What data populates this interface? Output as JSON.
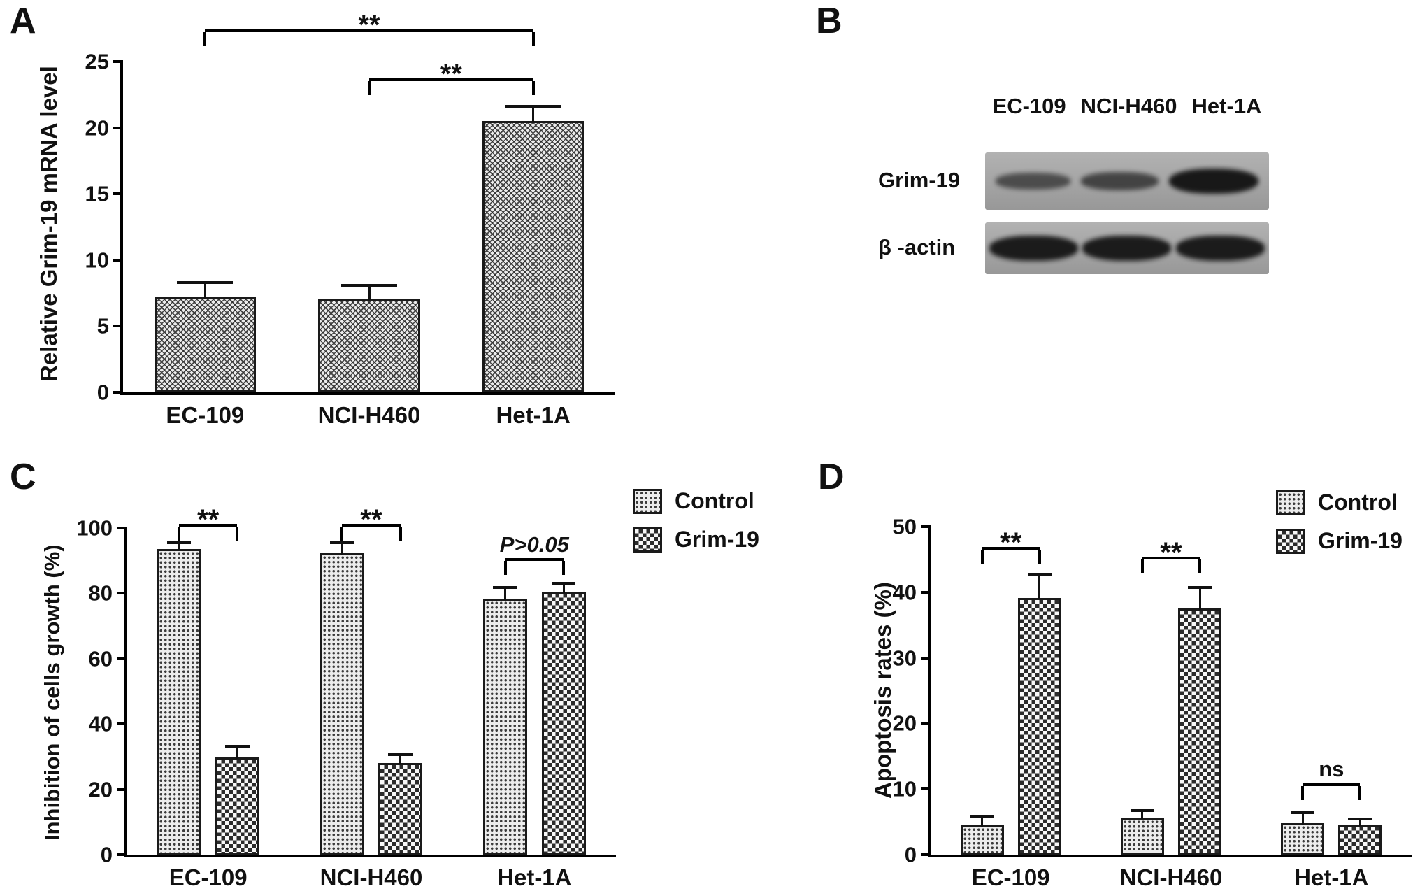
{
  "panels": [
    "A",
    "B",
    "C",
    "D"
  ],
  "chart_data": [
    {
      "panel": "A",
      "type": "bar",
      "categories": [
        "EC-109",
        "NCI-H460",
        "Het-1A"
      ],
      "values": [
        7.2,
        7.1,
        20.5
      ],
      "errors": [
        1.0,
        0.9,
        1.0
      ],
      "ylabel": "Relative Grim-19 mRNA level",
      "xlabel": "",
      "ylim": [
        0,
        25
      ],
      "yticks": [
        0,
        5,
        10,
        15,
        20,
        25
      ],
      "grid": false,
      "pattern": "pat-fine",
      "annotations": [
        {
          "label": "**",
          "from": 0,
          "to": 2,
          "y": 27.2
        },
        {
          "label": "**",
          "from": 1,
          "to": 2,
          "y": 23.5
        }
      ]
    },
    {
      "panel": "C",
      "type": "grouped-bar",
      "categories": [
        "EC-109",
        "NCI-H460",
        "Het-1A"
      ],
      "series": [
        {
          "name": "Control",
          "pattern": "pat-dots",
          "values": [
            93.5,
            92.4,
            78.4
          ],
          "errors": [
            1.5,
            2.6,
            3.0
          ]
        },
        {
          "name": "Grim-19",
          "pattern": "pat-checker",
          "values": [
            29.8,
            28.1,
            80.6
          ],
          "errors": [
            3.0,
            2.0,
            2.0
          ]
        }
      ],
      "ylabel": "Inhibition of cells growth (%)",
      "xlabel": "",
      "ylim": [
        0,
        100
      ],
      "yticks": [
        0,
        20,
        40,
        60,
        80,
        100
      ],
      "grid": false,
      "legend_position": "top-right",
      "annotations": [
        {
          "label": "**",
          "cat": 0,
          "y": 100.5
        },
        {
          "label": "**",
          "cat": 1,
          "y": 100.5
        },
        {
          "label": "P>0.05",
          "cat": 2,
          "y": 90,
          "style": "italic"
        }
      ]
    },
    {
      "panel": "D",
      "type": "grouped-bar",
      "categories": [
        "EC-109",
        "NCI-H460",
        "Het-1A"
      ],
      "series": [
        {
          "name": "Control",
          "pattern": "pat-dots",
          "values": [
            4.5,
            5.6,
            4.8
          ],
          "errors": [
            1.1,
            0.9,
            1.4
          ]
        },
        {
          "name": "Grim-19",
          "pattern": "pat-checker",
          "values": [
            39.1,
            37.5,
            4.6
          ],
          "errors": [
            3.4,
            3.0,
            0.6
          ]
        }
      ],
      "ylabel": "Apoptosis rates (%)",
      "xlabel": "",
      "ylim": [
        0,
        50
      ],
      "yticks": [
        0,
        10,
        20,
        30,
        40,
        50
      ],
      "grid": false,
      "legend_position": "top-right",
      "annotations": [
        {
          "label": "**",
          "cat": 0,
          "y": 46.5
        },
        {
          "label": "**",
          "cat": 1,
          "y": 45
        },
        {
          "label": "ns",
          "cat": 2,
          "y": 10.5
        }
      ]
    }
  ],
  "blot": {
    "panel": "B",
    "col_labels": [
      "EC-109",
      "NCI-H460",
      "Het-1A"
    ],
    "rows": [
      {
        "label": "Grim-19",
        "band_intensities": [
          0.38,
          0.48,
          0.95
        ]
      },
      {
        "label": "β -actin",
        "band_intensities": [
          0.92,
          0.92,
          0.92
        ]
      }
    ]
  }
}
